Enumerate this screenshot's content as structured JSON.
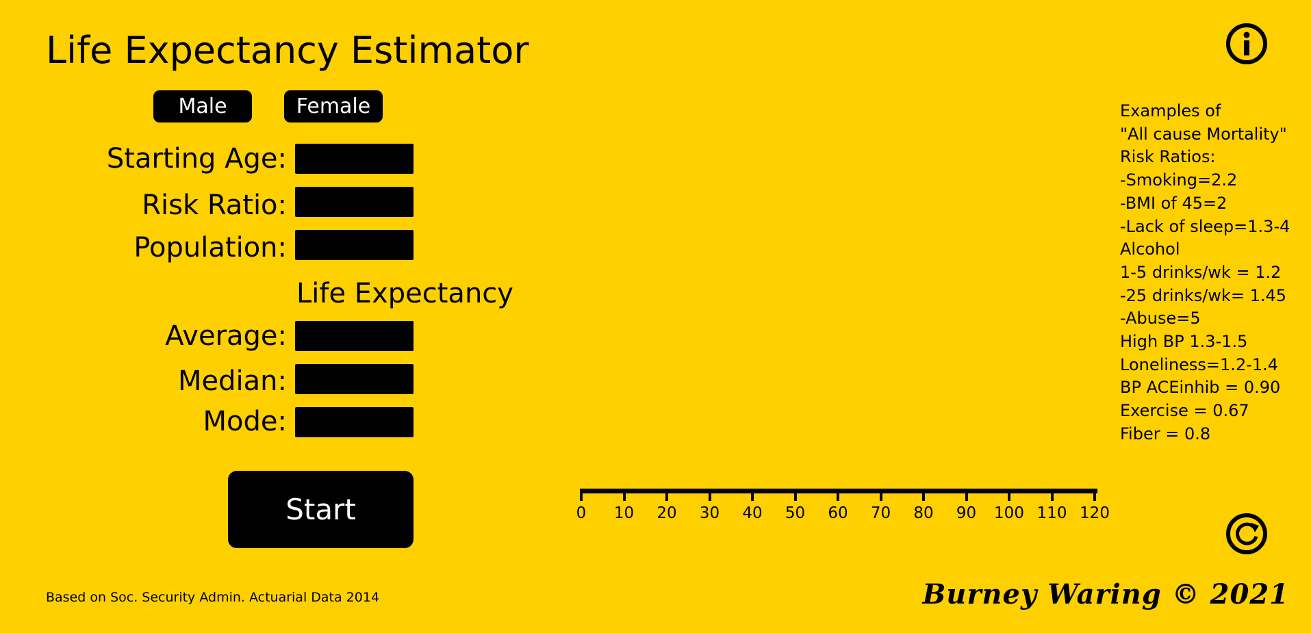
{
  "title": "Life Expectancy Estimator",
  "sex_buttons": {
    "male": "Male",
    "female": "Female"
  },
  "inputs": {
    "starting_age": {
      "label": "Starting Age:",
      "value": ""
    },
    "risk_ratio": {
      "label": "Risk Ratio:",
      "value": ""
    },
    "population": {
      "label": "Population:",
      "value": ""
    }
  },
  "results_heading": "Life Expectancy",
  "results": {
    "average": {
      "label": "Average:",
      "value": ""
    },
    "median": {
      "label": "Median:",
      "value": ""
    },
    "mode": {
      "label": "Mode:",
      "value": ""
    }
  },
  "start_label": "Start",
  "examples": [
    "Examples of",
    "\"All cause Mortality\"",
    "Risk Ratios:",
    "-Smoking=2.2",
    "-BMI of 45=2",
    "-Lack of sleep=1.3-4",
    "Alcohol",
    "1-5 drinks/wk = 1.2",
    "-25 drinks/wk= 1.45",
    "-Abuse=5",
    "High BP 1.3-1.5",
    "Loneliness=1.2-1.4",
    "BP ACEinhib = 0.90",
    "Exercise = 0.67",
    "Fiber = 0.8"
  ],
  "scale_ticks": [
    "0",
    "10",
    "20",
    "30",
    "40",
    "50",
    "60",
    "70",
    "80",
    "90",
    "100",
    "110",
    "120"
  ],
  "footer_note": "Based on Soc. Security Admin. Actuarial Data 2014",
  "credit": "Burney Waring © 2021",
  "icons": {
    "info": "info-icon",
    "reset": "reset-icon"
  },
  "colors": {
    "background": "#FFD000",
    "foreground": "#000000",
    "button_text": "#FFFFFF"
  }
}
